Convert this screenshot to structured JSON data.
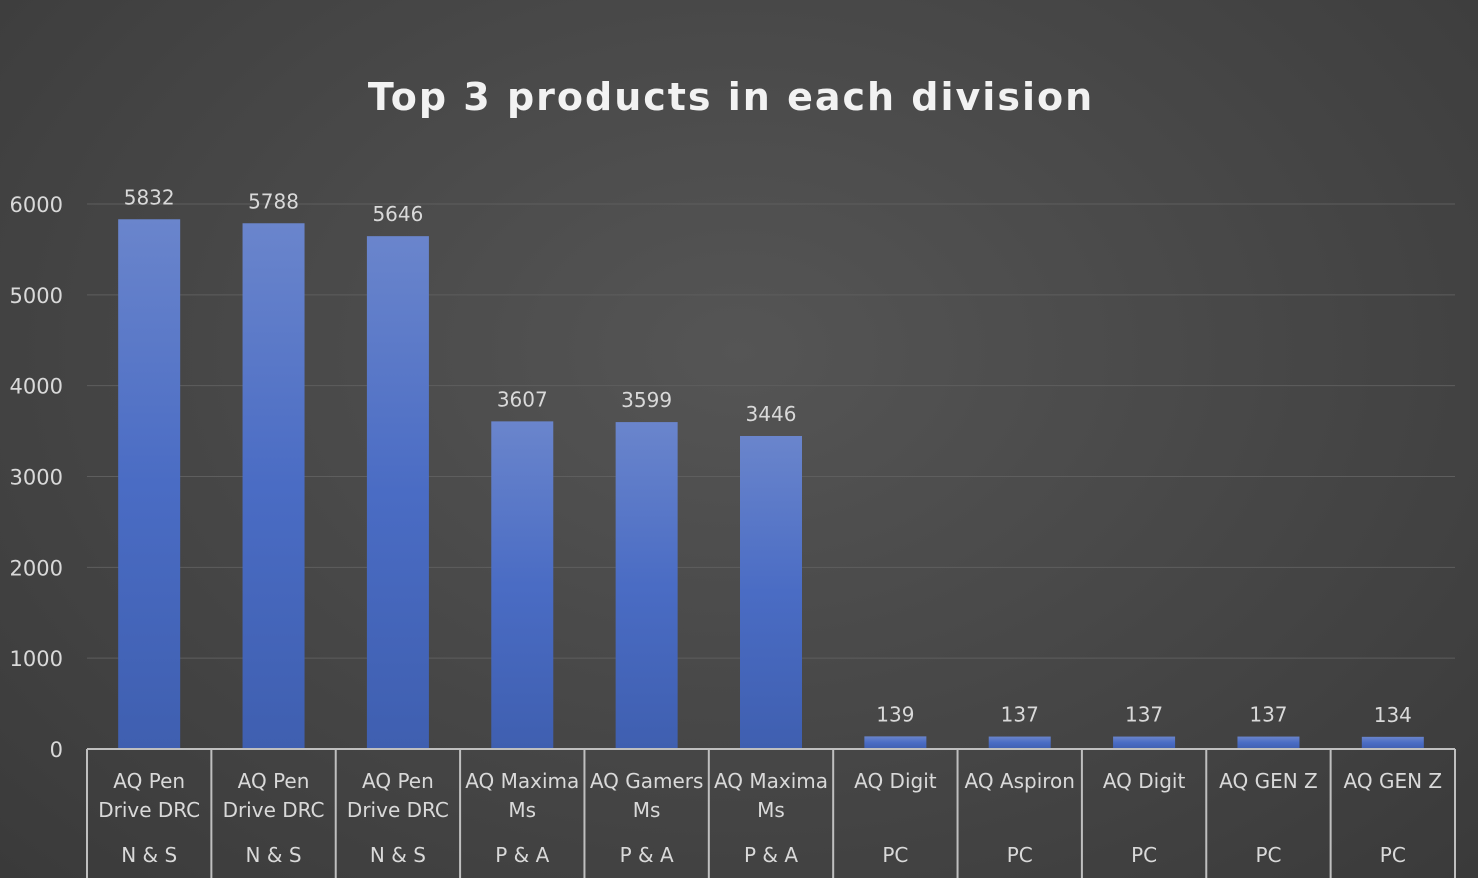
{
  "chart_data": {
    "type": "bar",
    "title": "Top 3 products in each division",
    "xlabel": "",
    "ylabel": "",
    "ylim": [
      0,
      6000
    ],
    "yticks": [
      0,
      1000,
      2000,
      3000,
      4000,
      5000,
      6000
    ],
    "grid": true,
    "legend": "none",
    "bar_color": "#4a6cc4",
    "categories": [
      {
        "product": "AQ Pen Drive DRC",
        "division": "N & S"
      },
      {
        "product": "AQ Pen Drive DRC",
        "division": "N & S"
      },
      {
        "product": "AQ Pen Drive DRC",
        "division": "N & S"
      },
      {
        "product": "AQ Maxima Ms",
        "division": "P & A"
      },
      {
        "product": "AQ Gamers Ms",
        "division": "P & A"
      },
      {
        "product": "AQ Maxima Ms",
        "division": "P & A"
      },
      {
        "product": "AQ Digit",
        "division": "PC"
      },
      {
        "product": "AQ Aspiron",
        "division": "PC"
      },
      {
        "product": "AQ Digit",
        "division": "PC"
      },
      {
        "product": "AQ GEN Z",
        "division": "PC"
      },
      {
        "product": "AQ GEN Z",
        "division": "PC"
      }
    ],
    "values": [
      5832,
      5788,
      5646,
      3607,
      3599,
      3446,
      139,
      137,
      137,
      137,
      134
    ]
  }
}
